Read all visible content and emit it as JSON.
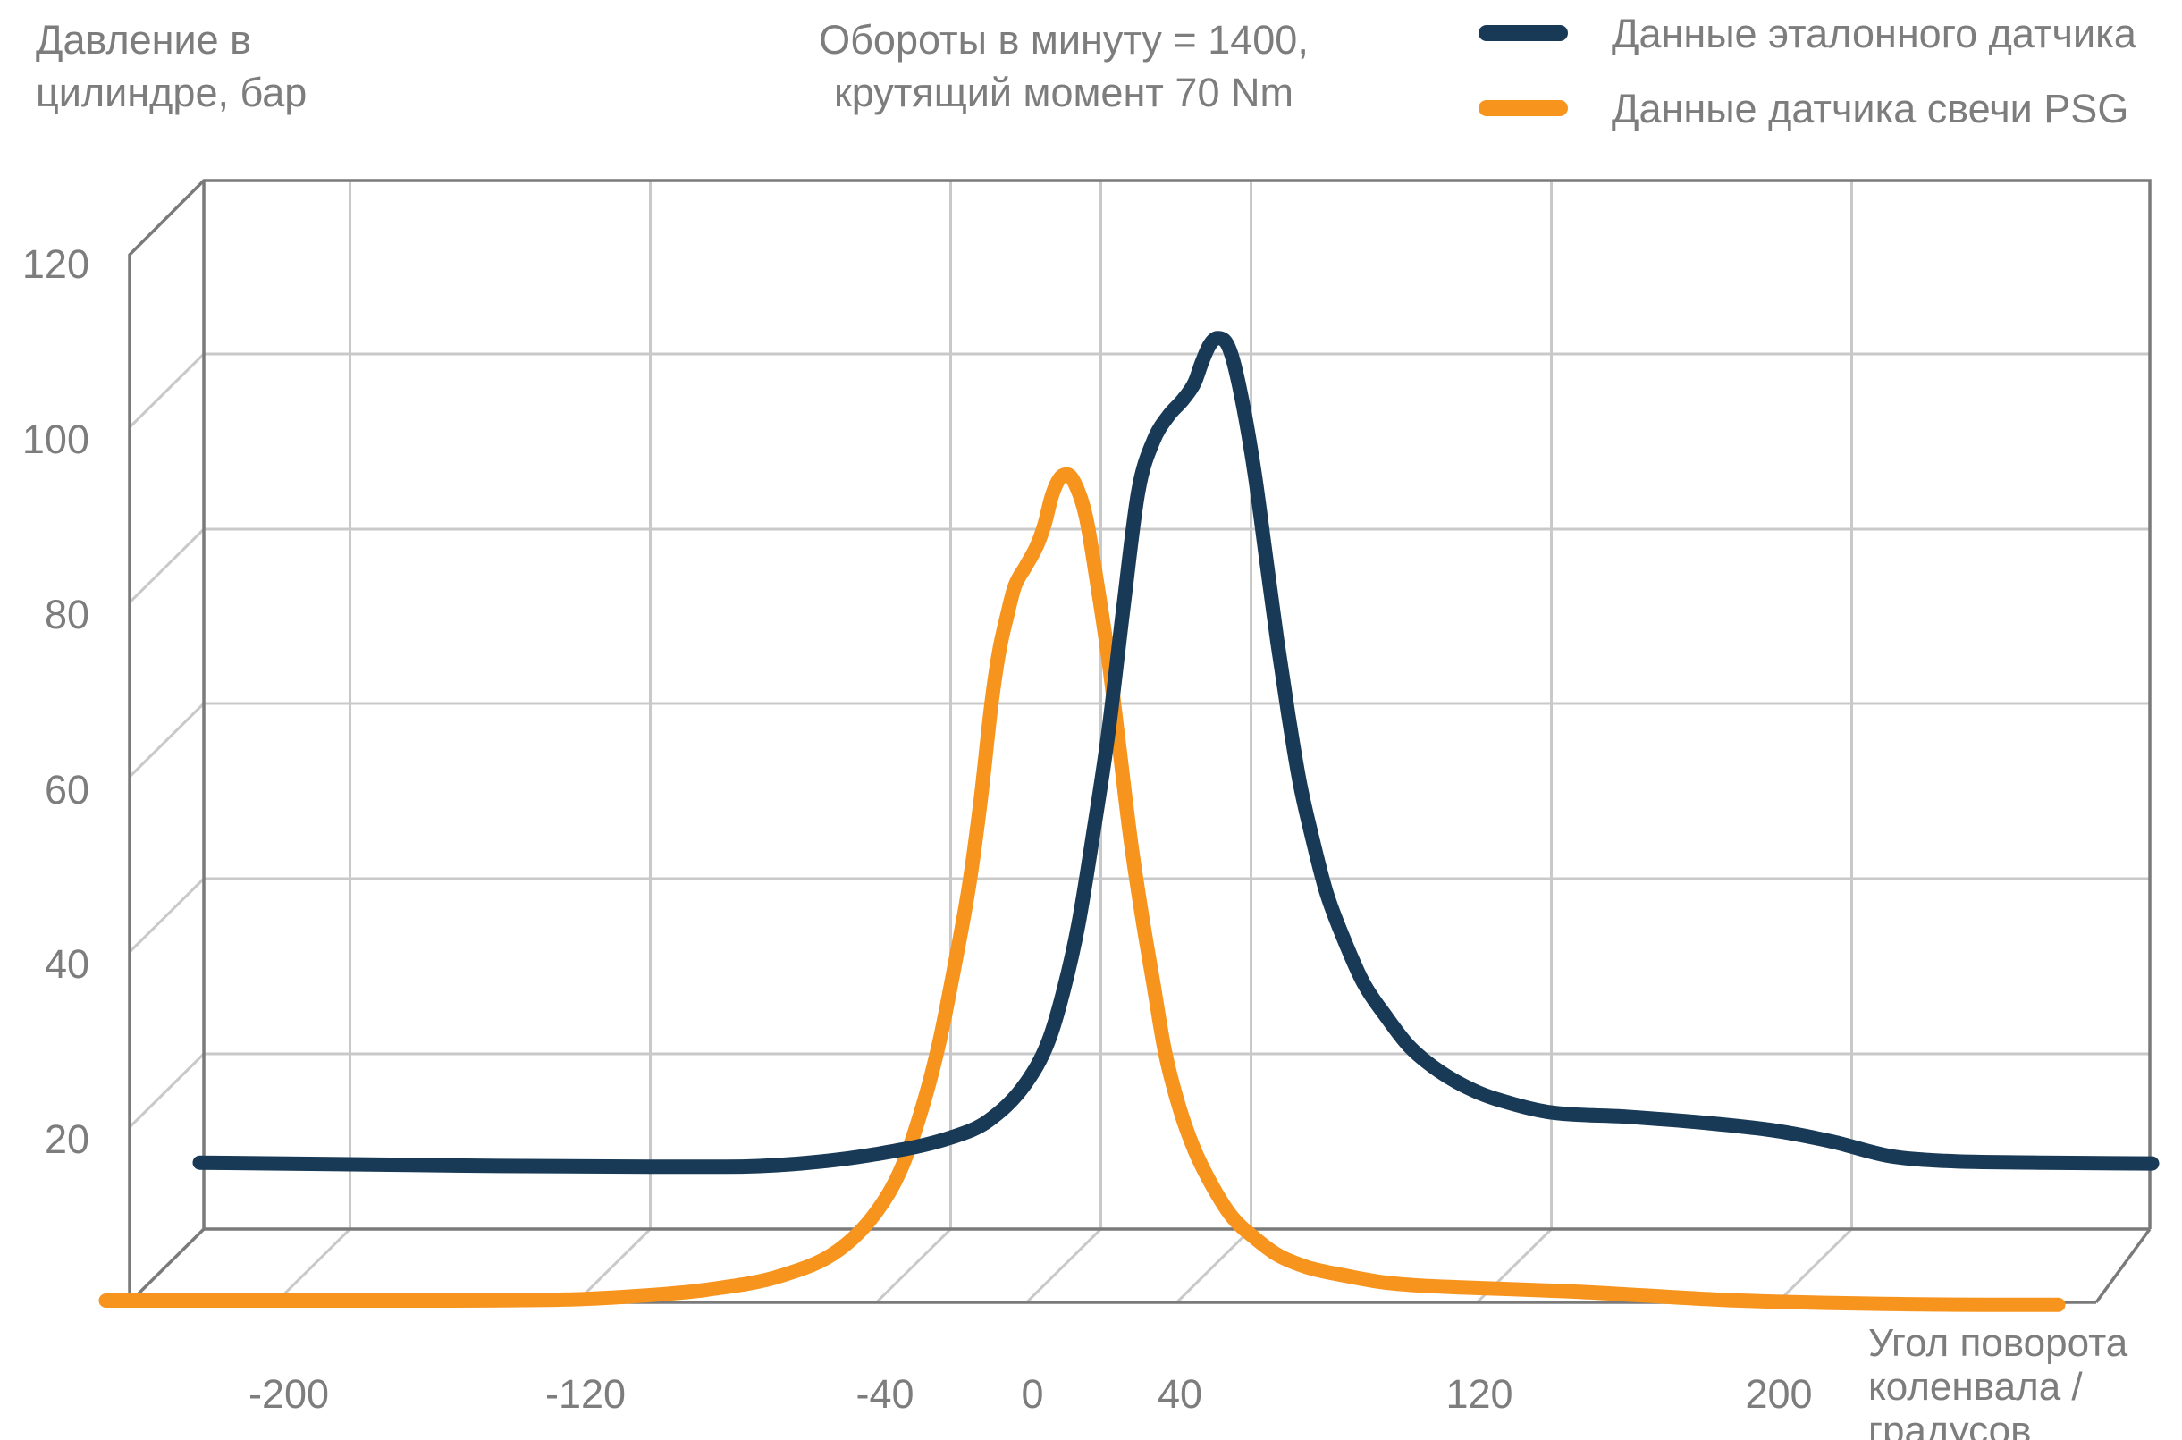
{
  "chart_data": {
    "type": "line",
    "ylabel_lines": [
      "Давление в",
      "цилиндре, бар"
    ],
    "annotation_lines": [
      "Обороты в минуту = 1400,",
      "крутящий момент 70 Nm"
    ],
    "xlabel_lines": [
      "Угол поворота",
      "коленвала /",
      "градусов"
    ],
    "yticks": [
      "20",
      "40",
      "60",
      "80",
      "100",
      "120"
    ],
    "xticks": [
      "-200",
      "-120",
      "-40",
      "0",
      "40",
      "120",
      "200"
    ],
    "xlim": [
      -240,
      280
    ],
    "ylim": [
      0,
      120
    ],
    "grid": true,
    "legend": "top-right",
    "series": [
      {
        "name": "Данные эталонного датчика",
        "color": "#183a56",
        "points": [
          [
            -240,
            5.5
          ],
          [
            -200,
            5.3
          ],
          [
            -160,
            5.1
          ],
          [
            -120,
            5.0
          ],
          [
            -100,
            5.0
          ],
          [
            -80,
            5.4
          ],
          [
            -60,
            6.5
          ],
          [
            -40,
            8.5
          ],
          [
            -30,
            10.5
          ],
          [
            -20,
            15
          ],
          [
            -14,
            20
          ],
          [
            -10,
            26
          ],
          [
            -6,
            34
          ],
          [
            -2,
            45
          ],
          [
            2,
            57
          ],
          [
            6,
            72
          ],
          [
            10,
            86
          ],
          [
            14,
            92
          ],
          [
            18,
            95
          ],
          [
            22,
            97
          ],
          [
            25,
            99
          ],
          [
            27,
            101.5
          ],
          [
            29,
            103.5
          ],
          [
            31,
            104.3
          ],
          [
            33,
            104
          ],
          [
            35,
            102
          ],
          [
            38,
            96
          ],
          [
            41,
            88
          ],
          [
            44,
            78
          ],
          [
            47,
            68
          ],
          [
            50,
            59
          ],
          [
            53,
            51
          ],
          [
            56,
            45
          ],
          [
            60,
            38
          ],
          [
            65,
            32
          ],
          [
            70,
            27
          ],
          [
            76,
            23
          ],
          [
            82,
            19.5
          ],
          [
            90,
            16.5
          ],
          [
            100,
            14
          ],
          [
            110,
            12.5
          ],
          [
            120,
            11.5
          ],
          [
            140,
            11
          ],
          [
            160,
            10.3
          ],
          [
            180,
            9.3
          ],
          [
            195,
            8
          ],
          [
            210,
            6.3
          ],
          [
            225,
            5.7
          ],
          [
            250,
            5.5
          ],
          [
            280,
            5.4
          ]
        ]
      },
      {
        "name": "Данные датчика свечи PSG",
        "color": "#f7941d",
        "points": [
          [
            -240,
            0
          ],
          [
            -200,
            0
          ],
          [
            -160,
            0
          ],
          [
            -120,
            0.1
          ],
          [
            -100,
            0.5
          ],
          [
            -80,
            1.3
          ],
          [
            -60,
            3
          ],
          [
            -45,
            6
          ],
          [
            -35,
            10.5
          ],
          [
            -28,
            16
          ],
          [
            -22,
            24
          ],
          [
            -18,
            31
          ],
          [
            -14,
            40
          ],
          [
            -10,
            50
          ],
          [
            -7,
            60
          ],
          [
            -4,
            72
          ],
          [
            -2,
            78
          ],
          [
            0,
            82
          ],
          [
            2,
            85.5
          ],
          [
            5,
            88
          ],
          [
            8,
            90.5
          ],
          [
            10,
            93
          ],
          [
            12,
            96.5
          ],
          [
            14,
            98.5
          ],
          [
            16,
            99
          ],
          [
            18,
            98
          ],
          [
            21,
            94
          ],
          [
            24,
            86
          ],
          [
            27,
            77
          ],
          [
            30,
            66
          ],
          [
            33,
            55
          ],
          [
            36,
            46
          ],
          [
            39,
            38
          ],
          [
            42,
            30
          ],
          [
            46,
            23
          ],
          [
            50,
            18
          ],
          [
            55,
            13.5
          ],
          [
            60,
            10
          ],
          [
            66,
            7.5
          ],
          [
            72,
            5.5
          ],
          [
            80,
            4
          ],
          [
            90,
            3
          ],
          [
            100,
            2.2
          ],
          [
            110,
            1.8
          ],
          [
            120,
            1.6
          ],
          [
            150,
            1.1
          ],
          [
            170,
            0.6
          ],
          [
            190,
            0.1
          ],
          [
            220,
            -0.3
          ],
          [
            260,
            -0.5
          ],
          [
            280,
            -0.5
          ]
        ]
      }
    ]
  }
}
